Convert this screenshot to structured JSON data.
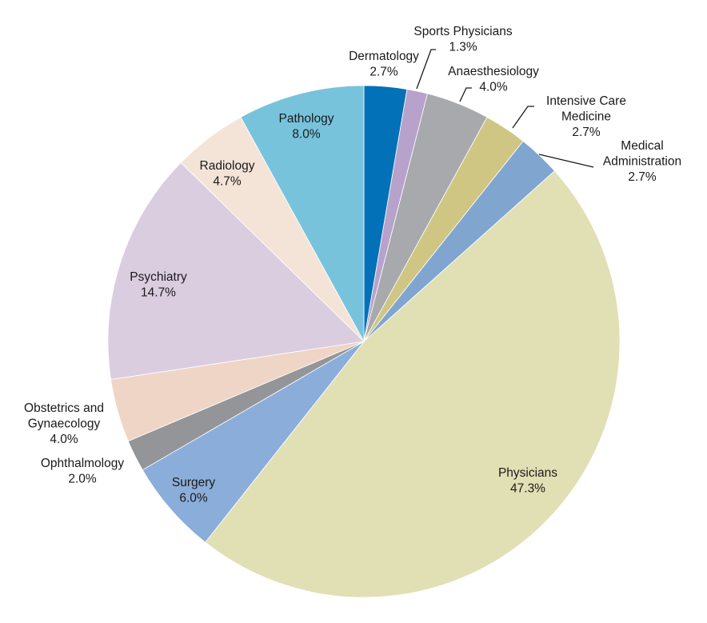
{
  "chart_data": {
    "type": "pie",
    "title": "",
    "start": "12 o'clock",
    "direction": "clockwise",
    "legend": "none",
    "slices": [
      {
        "label": "Dermatology",
        "display": "2.7%",
        "value": 2.7,
        "color": "#0271b8"
      },
      {
        "label": "Sports Physicians",
        "display": "1.3%",
        "value": 1.3,
        "color": "#b7a2cb"
      },
      {
        "label": "Anaesthesiology",
        "display": "4.0%",
        "value": 4.0,
        "color": "#a8a9ad"
      },
      {
        "label": "Intensive Care Medicine",
        "display": "2.7%",
        "value": 2.7,
        "color": "#cfc684"
      },
      {
        "label": "Medical Administration",
        "display": "2.7%",
        "value": 2.7,
        "color": "#80a6cf"
      },
      {
        "label": "Physicians",
        "display": "47.3%",
        "value": 47.3,
        "color": "#e1dfb4"
      },
      {
        "label": "Surgery",
        "display": "6.0%",
        "value": 6.0,
        "color": "#8badd9"
      },
      {
        "label": "Ophthalmology",
        "display": "2.0%",
        "value": 2.0,
        "color": "#939598"
      },
      {
        "label": "Obstetrics and Gynaecology",
        "display": "4.0%",
        "value": 4.0,
        "color": "#efd5c6"
      },
      {
        "label": "Psychiatry",
        "display": "14.7%",
        "value": 14.7,
        "color": "#dacde0"
      },
      {
        "label": "Radiology",
        "display": "4.7%",
        "value": 4.7,
        "color": "#f4e4d7"
      },
      {
        "label": "Pathology",
        "display": "8.0%",
        "value": 8.0,
        "color": "#78c3dc"
      }
    ]
  }
}
